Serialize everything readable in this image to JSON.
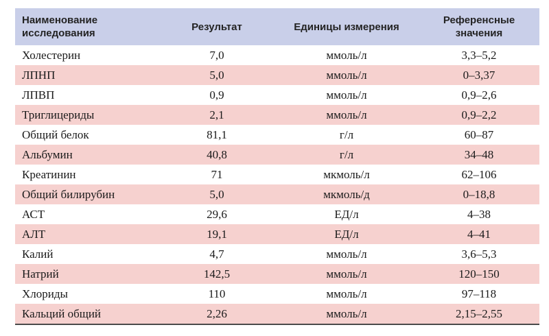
{
  "header": {
    "name": "Наименование\nисследования",
    "result": "Результат",
    "units": "Единицы измерения",
    "reference": "Референсные\nзначения"
  },
  "rows": [
    {
      "name": "Холестерин",
      "result": "7,0",
      "units": "ммоль/л",
      "reference": "3,3–5,2",
      "shade": "white"
    },
    {
      "name": "ЛПНП",
      "result": "5,0",
      "units": "ммоль/л",
      "reference": "0–3,37",
      "shade": "pink"
    },
    {
      "name": "ЛПВП",
      "result": "0,9",
      "units": "ммоль/л",
      "reference": "0,9–2,6",
      "shade": "white"
    },
    {
      "name": "Триглицериды",
      "result": "2,1",
      "units": "ммоль/л",
      "reference": "0,9–2,2",
      "shade": "pink"
    },
    {
      "name": "Общий белок",
      "result": "81,1",
      "units": "г/л",
      "reference": "60–87",
      "shade": "white"
    },
    {
      "name": "Альбумин",
      "result": "40,8",
      "units": "г/л",
      "reference": "34–48",
      "shade": "pink"
    },
    {
      "name": "Креатинин",
      "result": "71",
      "units": "мкмоль/л",
      "reference": "62–106",
      "shade": "white"
    },
    {
      "name": "Общий билирубин",
      "result": "5,0",
      "units": "мкмоль/д",
      "reference": "0–18,8",
      "shade": "pink"
    },
    {
      "name": "АСТ",
      "result": "29,6",
      "units": "ЕД/л",
      "reference": "4–38",
      "shade": "white"
    },
    {
      "name": "АЛТ",
      "result": "19,1",
      "units": "ЕД/л",
      "reference": "4–41",
      "shade": "pink"
    },
    {
      "name": "Калий",
      "result": "4,7",
      "units": "ммоль/л",
      "reference": "3,6–5,3",
      "shade": "white"
    },
    {
      "name": "Натрий",
      "result": "142,5",
      "units": "ммоль/л",
      "reference": "120–150",
      "shade": "pink"
    },
    {
      "name": "Хлориды",
      "result": "110",
      "units": "ммоль/л",
      "reference": "97–118",
      "shade": "white"
    },
    {
      "name": "Кальций общий",
      "result": "2,26",
      "units": "ммоль/л",
      "reference": "2,15–2,55",
      "shade": "pink"
    }
  ],
  "colors": {
    "header_bg": "#c9cfe9",
    "row_pink": "#f6d1cf",
    "row_white": "#ffffff"
  }
}
